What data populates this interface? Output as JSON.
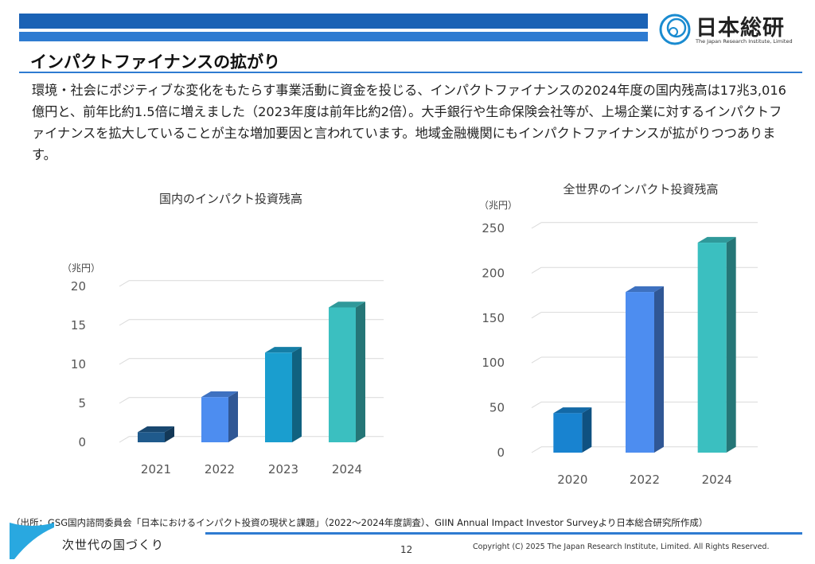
{
  "header": {
    "logo_text": "日本総研",
    "logo_subtext": "The Japan Research Institute, Limited"
  },
  "page_title": "インパクトファイナンスの拡がり",
  "body_paragraph": "環境・社会にポジティブな変化をもたらす事業活動に資金を投じる、インパクトファイナンスの2024年度の国内残高は17兆3,016億円と、前年比約1.5倍に増えました（2023年度は前年比約2倍）。大手銀行や生命保険会社等が、上場企業に対するインパクトファイナンスを拡大していることが主な増加要因と言われています。地域金融機関にもインパクトファイナンスが拡がりつつあります。",
  "chart_data": [
    {
      "type": "bar",
      "title": "国内のインパクト投資残高",
      "unit_label": "（兆円）",
      "categories": [
        "2021",
        "2022",
        "2023",
        "2024"
      ],
      "values": [
        1.3,
        5.8,
        11.5,
        17.3
      ],
      "yticks": [
        0,
        5,
        10,
        15,
        20
      ],
      "ylim": [
        0,
        20
      ],
      "colors": [
        "#1F5A8C",
        "#4D8DF0",
        "#1A9ECF",
        "#3BBFC0"
      ]
    },
    {
      "type": "bar",
      "title": "全世界のインパクト投資残高",
      "unit_label": "（兆円）",
      "categories": [
        "2020",
        "2022",
        "2024"
      ],
      "values": [
        44,
        179,
        234
      ],
      "yticks": [
        0,
        50,
        100,
        150,
        200,
        250
      ],
      "ylim": [
        0,
        250
      ],
      "colors": [
        "#1883D0",
        "#4D8DF0",
        "#3BBFC0"
      ]
    }
  ],
  "footer": {
    "source": "（出所：GSG国内諮問委員会「日本におけるインパクト投資の現状と課題」（2022～2024年度調査）、GIIN Annual Impact Investor Surveyより日本総合研究所作成）",
    "tagline": "次世代の国づくり",
    "page_number": "12",
    "copyright": "Copyright (C) 2025 The Japan Research Institute, Limited. All Rights Reserved."
  },
  "colors": {
    "brand_blue": "#1A62B5",
    "accent_blue": "#2E7BD1"
  }
}
